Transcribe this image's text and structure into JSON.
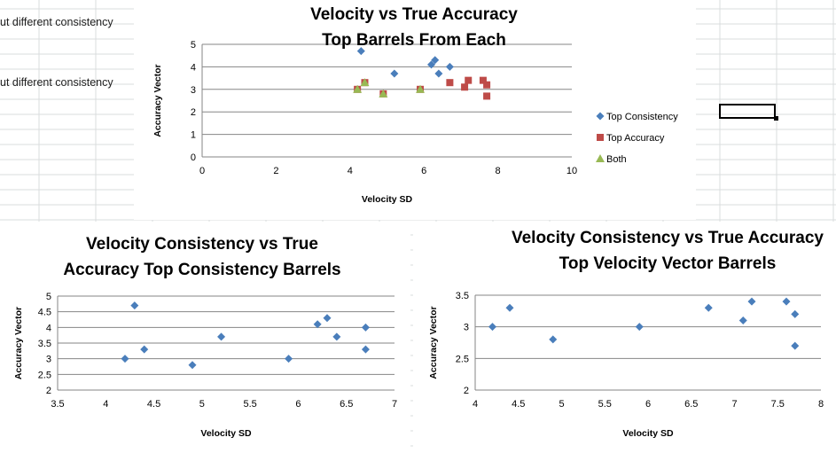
{
  "sheet": {
    "cells": [
      {
        "text": "ut different consistency"
      },
      {
        "text": "ut different consistency"
      }
    ]
  },
  "chart_data": [
    {
      "type": "scatter",
      "title": [
        "Velocity vs True Accuracy",
        "Top Barrels From Each"
      ],
      "xlabel": "Velocity SD",
      "ylabel": "Accuracy Vector",
      "xlim": [
        0,
        10
      ],
      "ylim": [
        0,
        5
      ],
      "xticks": [
        0,
        2,
        4,
        6,
        8,
        10
      ],
      "yticks": [
        0,
        1,
        2,
        3,
        4,
        5
      ],
      "grid": true,
      "legend": "right",
      "series": [
        {
          "name": "Top Consistency",
          "marker": "diamond",
          "color": "#4a7ebb",
          "x": [
            4.3,
            5.2,
            6.2,
            6.3,
            6.4,
            6.7
          ],
          "y": [
            4.7,
            3.7,
            4.1,
            4.3,
            3.7,
            4.0
          ]
        },
        {
          "name": "Top Accuracy",
          "marker": "square",
          "color": "#be4b48",
          "x": [
            4.2,
            4.4,
            4.9,
            5.9,
            6.7,
            7.1,
            7.2,
            7.6,
            7.7,
            7.7
          ],
          "y": [
            3.0,
            3.3,
            2.8,
            3.0,
            3.3,
            3.1,
            3.4,
            3.4,
            3.2,
            2.7
          ]
        },
        {
          "name": "Both",
          "marker": "triangle",
          "color": "#98b954",
          "x": [
            4.2,
            4.4,
            4.9,
            5.9
          ],
          "y": [
            3.0,
            3.3,
            2.8,
            3.0
          ]
        }
      ]
    },
    {
      "type": "scatter",
      "title": [
        "Velocity Consistency vs True",
        "Accuracy Top Consistency Barrels"
      ],
      "xlabel": "Velocity SD",
      "ylabel": "Accuracy Vector",
      "xlim": [
        3.5,
        7
      ],
      "ylim": [
        2,
        5
      ],
      "xticks": [
        3.5,
        4,
        4.5,
        5,
        5.5,
        6,
        6.5,
        7
      ],
      "yticks": [
        2,
        2.5,
        3,
        3.5,
        4,
        4.5,
        5
      ],
      "grid": true,
      "series": [
        {
          "marker": "diamond",
          "color": "#4a7ebb",
          "x": [
            4.2,
            4.3,
            4.4,
            4.9,
            5.2,
            5.9,
            6.2,
            6.3,
            6.4,
            6.7,
            6.7
          ],
          "y": [
            3.0,
            4.7,
            3.3,
            2.8,
            3.7,
            3.0,
            4.1,
            4.3,
            3.7,
            4.0,
            3.3
          ]
        }
      ]
    },
    {
      "type": "scatter",
      "title": [
        "Velocity Consistency vs True Accuracy",
        "Top Velocity Vector Barrels"
      ],
      "xlabel": "Velocity SD",
      "ylabel": "Accuracy Vector",
      "xlim": [
        4,
        8
      ],
      "ylim": [
        2,
        3.5
      ],
      "xticks": [
        4,
        4.5,
        5,
        5.5,
        6,
        6.5,
        7,
        7.5,
        8
      ],
      "yticks": [
        2,
        2.5,
        3,
        3.5
      ],
      "grid": true,
      "series": [
        {
          "marker": "diamond",
          "color": "#4a7ebb",
          "x": [
            4.2,
            4.4,
            4.9,
            5.9,
            6.7,
            7.1,
            7.2,
            7.6,
            7.7,
            7.7
          ],
          "y": [
            3.0,
            3.3,
            2.8,
            3.0,
            3.3,
            3.1,
            3.4,
            3.4,
            3.2,
            2.7
          ]
        }
      ]
    }
  ]
}
